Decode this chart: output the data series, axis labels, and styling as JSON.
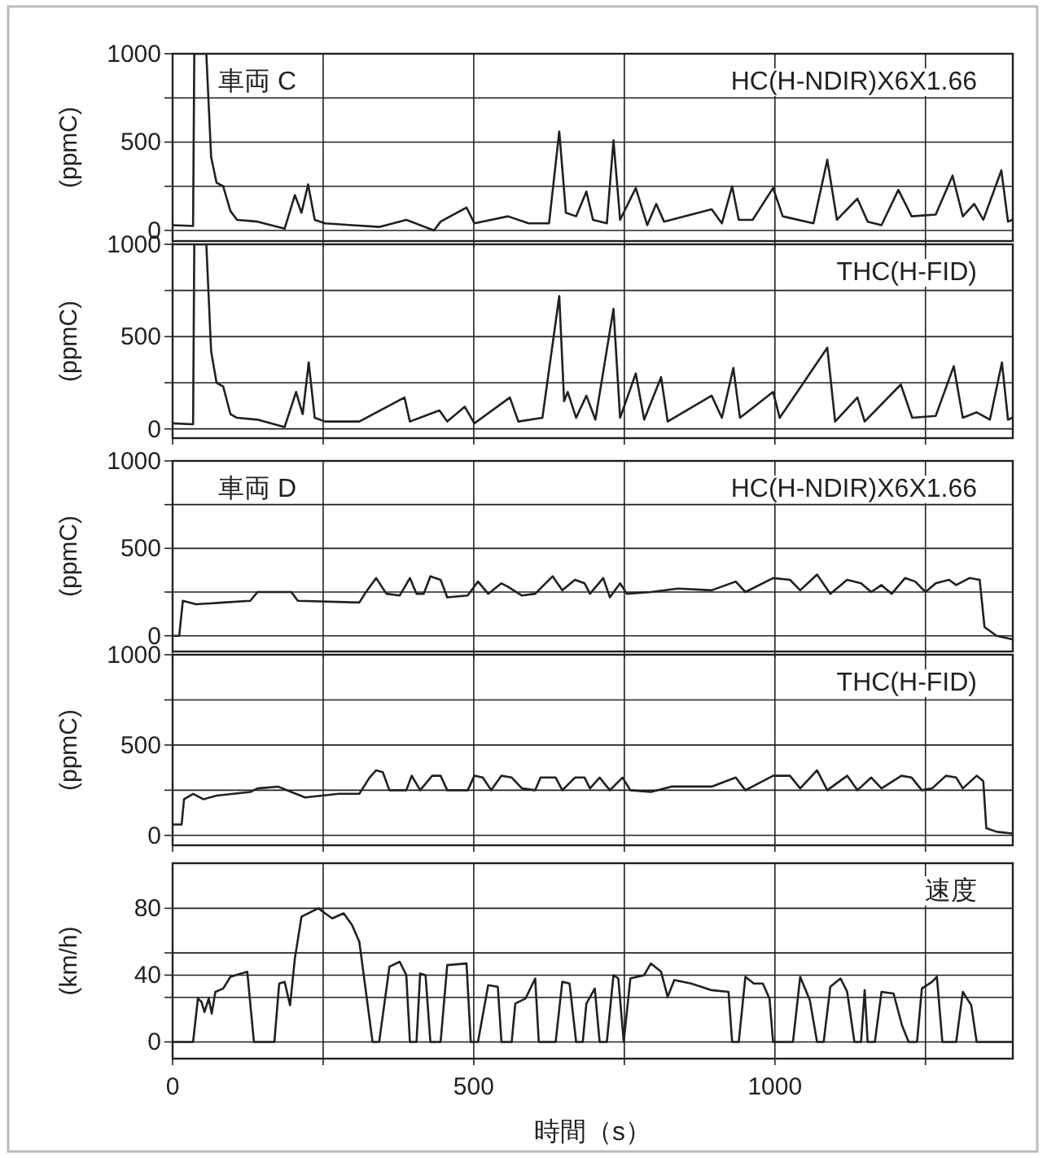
{
  "chart_data": [
    {
      "type": "line",
      "title": "車両 C",
      "ylabel": "(ppmC)",
      "xlim": [
        0,
        1395
      ],
      "ylim": [
        -60,
        1000
      ],
      "xticks": [
        0,
        {
          "value": 250,
          "label": null
        },
        500,
        {
          "value": 750,
          "label": null
        },
        1000,
        {
          "value": 1250,
          "label": null
        }
      ],
      "yticks": [
        0,
        {
          "value": 250,
          "label": null
        },
        500,
        {
          "value": 750,
          "label": null
        },
        1000
      ],
      "grid": true,
      "legend": false,
      "tick_labels": "y",
      "series": [
        {
          "name": "HC(H-NDIR)X6X1.66",
          "color": "#231f20",
          "x": [
            0,
            34,
            36,
            56,
            64,
            73,
            84,
            96,
            107,
            141,
            186,
            203,
            214,
            225,
            236,
            253,
            298,
            343,
            388,
            434,
            445,
            488,
            501,
            557,
            591,
            625,
            642,
            653,
            670,
            687,
            698,
            721,
            732,
            743,
            769,
            788,
            803,
            816,
            839,
            895,
            912,
            929,
            940,
            963,
            997,
            1013,
            1064,
            1087,
            1103,
            1137,
            1154,
            1177,
            1205,
            1227,
            1267,
            1295,
            1312,
            1331,
            1346,
            1376,
            1387,
            1394
          ],
          "values": [
            30,
            25,
            1000,
            1000,
            415,
            270,
            250,
            110,
            60,
            50,
            10,
            200,
            100,
            260,
            60,
            40,
            30,
            20,
            60,
            0,
            50,
            130,
            40,
            80,
            40,
            40,
            560,
            100,
            80,
            220,
            60,
            40,
            510,
            60,
            240,
            30,
            150,
            50,
            70,
            120,
            40,
            250,
            60,
            60,
            240,
            80,
            40,
            400,
            60,
            180,
            50,
            30,
            230,
            80,
            90,
            310,
            80,
            150,
            60,
            340,
            50,
            60
          ]
        }
      ]
    },
    {
      "type": "line",
      "ylabel": "(ppmC)",
      "xlim": [
        0,
        1395
      ],
      "ylim": [
        -50,
        1000
      ],
      "xticks": [
        0,
        {
          "value": 250,
          "label": null
        },
        500,
        {
          "value": 750,
          "label": null
        },
        1000,
        {
          "value": 1250,
          "label": null
        }
      ],
      "yticks": [
        0,
        {
          "value": 250,
          "label": null
        },
        500,
        {
          "value": 750,
          "label": null
        },
        1000
      ],
      "grid": true,
      "legend": false,
      "tick_labels": "y",
      "series": [
        {
          "name": "THC(H-FID)",
          "color": "#231f20",
          "x": [
            0,
            34,
            36,
            56,
            64,
            73,
            84,
            96,
            107,
            141,
            186,
            205,
            216,
            226,
            236,
            253,
            310,
            385,
            394,
            443,
            456,
            485,
            501,
            560,
            574,
            614,
            642,
            650,
            656,
            670,
            687,
            702,
            732,
            743,
            769,
            783,
            811,
            822,
            895,
            912,
            931,
            942,
            997,
            1008,
            1087,
            1100,
            1137,
            1149,
            1209,
            1228,
            1267,
            1297,
            1312,
            1335,
            1357,
            1377,
            1387,
            1394
          ],
          "values": [
            30,
            25,
            1000,
            1000,
            420,
            250,
            230,
            80,
            60,
            50,
            10,
            200,
            80,
            360,
            60,
            40,
            40,
            170,
            40,
            100,
            40,
            120,
            30,
            170,
            40,
            60,
            720,
            150,
            200,
            60,
            180,
            50,
            650,
            60,
            300,
            50,
            280,
            40,
            180,
            60,
            330,
            60,
            200,
            60,
            440,
            40,
            170,
            40,
            240,
            60,
            70,
            340,
            60,
            90,
            50,
            360,
            50,
            60
          ]
        }
      ]
    },
    {
      "type": "line",
      "title": "車両 D",
      "ylabel": "(ppmC)",
      "xlim": [
        0,
        1395
      ],
      "ylim": [
        -90,
        1000
      ],
      "xticks": [
        0,
        {
          "value": 250,
          "label": null
        },
        500,
        {
          "value": 750,
          "label": null
        },
        1000,
        {
          "value": 1250,
          "label": null
        }
      ],
      "yticks": [
        0,
        {
          "value": 250,
          "label": null
        },
        500,
        {
          "value": 750,
          "label": null
        },
        1000
      ],
      "grid": true,
      "legend": false,
      "tick_labels": "y",
      "series": [
        {
          "name": "HC(H-NDIR)X6X1.66",
          "color": "#231f20",
          "x": [
            0,
            11,
            17,
            39,
            84,
            129,
            141,
            197,
            208,
            310,
            321,
            338,
            355,
            377,
            394,
            405,
            417,
            428,
            445,
            456,
            490,
            507,
            524,
            546,
            557,
            580,
            602,
            631,
            647,
            668,
            684,
            693,
            715,
            726,
            743,
            754,
            794,
            839,
            895,
            935,
            951,
            997,
            1025,
            1042,
            1070,
            1092,
            1120,
            1143,
            1160,
            1177,
            1194,
            1216,
            1233,
            1250,
            1267,
            1289,
            1301,
            1323,
            1340,
            1348,
            1368,
            1394
          ],
          "values": [
            0,
            0,
            200,
            180,
            190,
            200,
            250,
            250,
            200,
            190,
            250,
            330,
            240,
            230,
            330,
            240,
            240,
            340,
            320,
            220,
            230,
            310,
            240,
            300,
            280,
            230,
            240,
            340,
            260,
            320,
            300,
            240,
            330,
            220,
            300,
            240,
            250,
            270,
            260,
            310,
            250,
            330,
            320,
            260,
            350,
            240,
            320,
            300,
            250,
            290,
            240,
            330,
            310,
            250,
            300,
            320,
            290,
            330,
            320,
            50,
            0,
            -20
          ]
        }
      ]
    },
    {
      "type": "line",
      "ylabel": "(ppmC)",
      "xlim": [
        0,
        1395
      ],
      "ylim": [
        -55,
        1000
      ],
      "xticks": [
        0,
        {
          "value": 250,
          "label": null
        },
        500,
        {
          "value": 750,
          "label": null
        },
        1000,
        {
          "value": 1250,
          "label": null
        }
      ],
      "yticks": [
        0,
        {
          "value": 250,
          "label": null
        },
        500,
        {
          "value": 750,
          "label": null
        },
        1000
      ],
      "grid": true,
      "legend": false,
      "tick_labels": "y",
      "series": [
        {
          "name": "THC(H-FID)",
          "color": "#231f20",
          "x": [
            0,
            15,
            19,
            34,
            51,
            73,
            129,
            141,
            175,
            197,
            220,
            276,
            310,
            327,
            338,
            349,
            360,
            388,
            397,
            411,
            431,
            445,
            456,
            490,
            501,
            515,
            529,
            546,
            563,
            580,
            602,
            611,
            636,
            647,
            668,
            684,
            693,
            709,
            726,
            747,
            760,
            794,
            828,
            895,
            935,
            951,
            997,
            1025,
            1042,
            1070,
            1087,
            1120,
            1137,
            1160,
            1177,
            1210,
            1227,
            1244,
            1261,
            1284,
            1301,
            1312,
            1335,
            1346,
            1351,
            1368,
            1394
          ],
          "values": [
            60,
            60,
            200,
            230,
            200,
            220,
            240,
            260,
            270,
            240,
            210,
            230,
            230,
            320,
            360,
            350,
            250,
            250,
            330,
            250,
            330,
            330,
            250,
            250,
            330,
            320,
            250,
            330,
            320,
            260,
            250,
            320,
            320,
            250,
            320,
            320,
            260,
            320,
            250,
            320,
            250,
            240,
            270,
            270,
            320,
            250,
            330,
            330,
            260,
            360,
            250,
            330,
            250,
            320,
            260,
            330,
            320,
            250,
            260,
            330,
            320,
            260,
            330,
            300,
            40,
            20,
            10
          ]
        }
      ]
    },
    {
      "type": "line",
      "ylabel": "(km/h)",
      "xlabel": "時間（s）",
      "xlim": [
        0,
        1395
      ],
      "ylim": [
        -10,
        107
      ],
      "xticks": [
        0,
        {
          "value": 250,
          "label": null
        },
        500,
        {
          "value": 750,
          "label": null
        },
        1000,
        {
          "value": 1250,
          "label": null
        }
      ],
      "yticks": [
        0,
        {
          "value": 26.7,
          "label": null
        },
        40,
        {
          "value": 53.3,
          "label": null
        },
        80
      ],
      "grid": true,
      "legend": false,
      "series": [
        {
          "name": "速度",
          "color": "#231f20",
          "x": [
            0,
            34,
            42,
            48,
            53,
            60,
            65,
            71,
            84,
            96,
            124,
            135,
            169,
            177,
            186,
            195,
            203,
            214,
            242,
            253,
            265,
            284,
            298,
            310,
            332,
            343,
            360,
            377,
            388,
            394,
            405,
            411,
            420,
            428,
            445,
            456,
            488,
            495,
            507,
            524,
            540,
            546,
            563,
            569,
            586,
            602,
            608,
            636,
            647,
            659,
            670,
            681,
            687,
            701,
            709,
            721,
            732,
            740,
            749,
            760,
            783,
            794,
            811,
            822,
            833,
            861,
            895,
            923,
            929,
            940,
            951,
            965,
            980,
            991,
            997,
            1030,
            1042,
            1058,
            1070,
            1081,
            1092,
            1109,
            1120,
            1132,
            1143,
            1149,
            1154,
            1166,
            1177,
            1197,
            1211,
            1222,
            1236,
            1244,
            1261,
            1269,
            1278,
            1301,
            1312,
            1326,
            1335,
            1394
          ],
          "values": [
            0,
            0,
            26,
            24,
            18,
            26,
            17,
            30,
            32,
            39,
            42,
            0,
            0,
            35,
            36,
            22,
            50,
            75,
            80,
            77,
            74,
            77,
            70,
            60,
            0,
            0,
            45,
            48,
            40,
            0,
            0,
            41,
            40,
            0,
            0,
            46,
            47,
            0,
            0,
            34,
            33,
            0,
            0,
            23,
            26,
            38,
            0,
            0,
            36,
            35,
            0,
            0,
            23,
            32,
            0,
            0,
            40,
            38,
            0,
            38,
            40,
            47,
            42,
            27,
            37,
            35,
            31,
            30,
            0,
            0,
            39,
            35,
            35,
            26,
            0,
            0,
            39,
            25,
            0,
            0,
            33,
            38,
            30,
            0,
            0,
            31,
            0,
            0,
            30,
            29,
            10,
            0,
            0,
            32,
            36,
            39,
            0,
            0,
            30,
            22,
            0,
            0
          ]
        }
      ]
    }
  ]
}
